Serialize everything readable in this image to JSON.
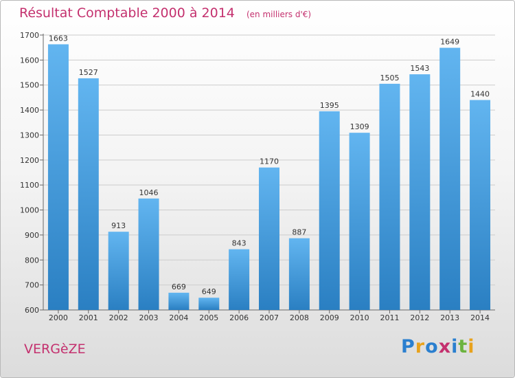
{
  "header": {
    "title": "Résultat Comptable 2000 à 2014",
    "subtitle": "(en milliers d'€)"
  },
  "place_label": "VERGèZE",
  "logo": {
    "letters": [
      {
        "ch": "P",
        "color": "#2a7fcf"
      },
      {
        "ch": "r",
        "color": "#e8a21c"
      },
      {
        "ch": "o",
        "color": "#2a7fcf"
      },
      {
        "ch": "x",
        "color": "#c4306e"
      },
      {
        "ch": "i",
        "color": "#2a7fcf"
      },
      {
        "ch": "t",
        "color": "#6cb33f"
      },
      {
        "ch": "i",
        "color": "#e8a21c"
      }
    ]
  },
  "colors": {
    "bar_light": "#62b5f0",
    "bar_dark": "#2a7fc2",
    "accent": "#c4306e",
    "grid": "#cccccc"
  },
  "chart_data": {
    "type": "bar",
    "categories": [
      "2000",
      "2001",
      "2002",
      "2003",
      "2004",
      "2005",
      "2006",
      "2007",
      "2008",
      "2009",
      "2010",
      "2011",
      "2012",
      "2013",
      "2014"
    ],
    "values": [
      1663,
      1527,
      913,
      1046,
      669,
      649,
      843,
      1170,
      887,
      1395,
      1309,
      1505,
      1543,
      1649,
      1440
    ],
    "title": "Résultat Comptable 2000 à 2014",
    "ylim": [
      600,
      1700
    ],
    "yticks": [
      600,
      700,
      800,
      900,
      1000,
      1100,
      1200,
      1300,
      1400,
      1500,
      1600,
      1700
    ],
    "grid": true,
    "data_labels": true
  }
}
